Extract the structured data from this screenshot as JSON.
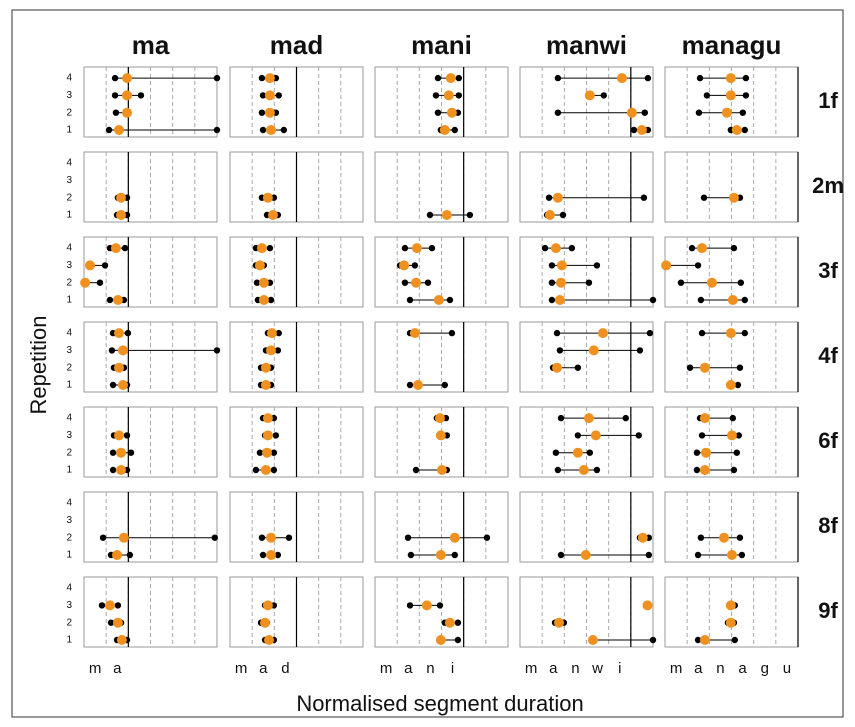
{
  "chart_data": {
    "type": "dot-range",
    "y_label": "Repetition",
    "x_label": "Normalised segment duration",
    "words": [
      {
        "word": "ma",
        "segments": [
          "m",
          "a"
        ]
      },
      {
        "word": "mad",
        "segments": [
          "m",
          "a",
          "d"
        ]
      },
      {
        "word": "mani",
        "segments": [
          "m",
          "a",
          "n",
          "i"
        ]
      },
      {
        "word": "manwi",
        "segments": [
          "m",
          "a",
          "n",
          "w",
          "i"
        ]
      },
      {
        "word": "managu",
        "segments": [
          "m",
          "a",
          "n",
          "a",
          "g",
          "u"
        ]
      }
    ],
    "speakers": [
      "1f",
      "2m",
      "3f",
      "4f",
      "6f",
      "8f",
      "9f"
    ],
    "reps": [
      1,
      2,
      3,
      4
    ],
    "xlim": [
      0,
      6
    ],
    "xticks": [
      1,
      2,
      3,
      4,
      5
    ],
    "colors": {
      "mid": "#f0901e",
      "range": "#000000"
    },
    "panels": [
      [
        {
          "lo": [
            1.13,
            1.44,
            1.4,
            1.4
          ],
          "mid": [
            1.58,
            1.94,
            1.94,
            1.94
          ],
          "hi": [
            6.0,
            1.98,
            2.57,
            6.0
          ]
        },
        {
          "lo": [
            1.49,
            1.44,
            1.49,
            1.44
          ],
          "mid": [
            1.85,
            1.8,
            1.8,
            1.8
          ],
          "hi": [
            2.43,
            2.07,
            2.2,
            2.07
          ]
        },
        {
          "lo": [
            2.97,
            2.84,
            2.75,
            2.84
          ],
          "mid": [
            3.15,
            3.47,
            3.33,
            3.42
          ],
          "hi": [
            3.6,
            3.74,
            3.78,
            3.78
          ]
        },
        {
          "lo": [
            5.14,
            1.71,
            3.15,
            1.71
          ],
          "mid": [
            5.5,
            5.05,
            3.15,
            4.6
          ],
          "hi": [
            5.77,
            5.63,
            3.78,
            5.77
          ]
        },
        {
          "lo": [
            2.97,
            1.53,
            1.89,
            1.58
          ],
          "mid": [
            3.24,
            2.79,
            2.97,
            2.97
          ],
          "hi": [
            3.6,
            3.51,
            3.65,
            3.65
          ]
        }
      ],
      [
        {
          "lo": [
            1.49,
            1.53,
            null,
            null
          ],
          "mid": [
            1.67,
            1.67,
            null,
            null
          ],
          "hi": [
            1.94,
            1.94,
            null,
            null
          ]
        },
        {
          "lo": [
            1.67,
            1.44,
            null,
            null
          ],
          "mid": [
            1.94,
            1.71,
            null,
            null
          ],
          "hi": [
            2.16,
            1.98,
            null,
            null
          ]
        },
        {
          "lo": [
            2.48,
            null,
            null,
            null
          ],
          "mid": [
            3.24,
            null,
            null,
            null
          ],
          "hi": [
            4.28,
            null,
            null,
            null
          ]
        },
        {
          "lo": [
            1.22,
            1.31,
            null,
            null
          ],
          "mid": [
            1.35,
            1.71,
            null,
            null
          ],
          "hi": [
            1.94,
            5.59,
            null,
            null
          ]
        },
        {
          "lo": [
            null,
            1.76,
            null,
            null
          ],
          "mid": [
            null,
            3.11,
            null,
            null
          ],
          "hi": [
            null,
            3.38,
            null,
            null
          ]
        }
      ],
      [
        {
          "lo": [
            1.17,
            0.05,
            0.27,
            1.17
          ],
          "mid": [
            1.53,
            0.05,
            0.27,
            1.44
          ],
          "hi": [
            1.8,
            0.72,
            0.95,
            1.85
          ]
        },
        {
          "lo": [
            1.26,
            1.22,
            1.17,
            1.17
          ],
          "mid": [
            1.53,
            1.53,
            1.35,
            1.44
          ],
          "hi": [
            1.85,
            1.8,
            1.53,
            1.8
          ]
        },
        {
          "lo": [
            1.58,
            1.35,
            1.13,
            1.35
          ],
          "mid": [
            2.88,
            1.85,
            1.31,
            1.89
          ],
          "hi": [
            3.38,
            2.39,
            1.8,
            2.57
          ]
        },
        {
          "lo": [
            1.44,
            1.44,
            1.44,
            1.13
          ],
          "mid": [
            1.8,
            1.85,
            1.89,
            1.62
          ],
          "hi": [
            6.0,
            3.11,
            3.47,
            2.34
          ]
        },
        {
          "lo": [
            1.62,
            0.72,
            0.05,
            1.22
          ],
          "mid": [
            3.06,
            2.12,
            0.05,
            1.67
          ],
          "hi": [
            3.6,
            3.42,
            1.49,
            3.11
          ]
        }
      ],
      [
        {
          "lo": [
            1.31,
            1.35,
            1.26,
            1.31
          ],
          "mid": [
            1.76,
            1.58,
            1.76,
            1.58
          ],
          "hi": [
            1.94,
            1.8,
            6.0,
            1.98
          ]
        },
        {
          "lo": [
            1.4,
            1.4,
            1.62,
            1.71
          ],
          "mid": [
            1.62,
            1.62,
            1.85,
            1.89
          ],
          "hi": [
            1.85,
            1.85,
            2.16,
            2.2
          ]
        },
        {
          "lo": [
            1.58,
            null,
            null,
            1.58
          ],
          "mid": [
            1.94,
            null,
            null,
            1.8
          ],
          "hi": [
            3.15,
            null,
            null,
            3.47
          ]
        },
        {
          "lo": [
            null,
            1.49,
            1.8,
            1.67
          ],
          "mid": [
            null,
            1.67,
            3.33,
            3.74
          ],
          "hi": [
            null,
            2.61,
            5.41,
            5.86
          ]
        },
        {
          "lo": [
            2.93,
            1.13,
            null,
            1.67
          ],
          "mid": [
            2.97,
            1.8,
            null,
            2.97
          ],
          "hi": [
            3.29,
            3.38,
            null,
            3.6
          ]
        }
      ],
      [
        {
          "lo": [
            1.31,
            1.31,
            1.35,
            null
          ],
          "mid": [
            1.67,
            1.67,
            1.58,
            null
          ],
          "hi": [
            1.94,
            2.12,
            1.94,
            null
          ]
        },
        {
          "lo": [
            1.17,
            1.35,
            1.58,
            1.49
          ],
          "mid": [
            1.62,
            1.67,
            1.71,
            1.71
          ],
          "hi": [
            1.98,
            1.98,
            2.07,
            1.98
          ]
        },
        {
          "lo": [
            1.85,
            null,
            2.93,
            2.79
          ],
          "mid": [
            3.02,
            null,
            2.97,
            2.93
          ],
          "hi": [
            3.24,
            null,
            3.24,
            3.2
          ]
        },
        {
          "lo": [
            1.71,
            1.62,
            2.61,
            1.85
          ],
          "mid": [
            2.88,
            2.61,
            3.42,
            3.11
          ],
          "hi": [
            3.47,
            3.15,
            5.36,
            4.77
          ]
        },
        {
          "lo": [
            1.44,
            1.44,
            1.67,
            1.58
          ],
          "mid": [
            1.8,
            1.85,
            3.02,
            1.8
          ],
          "hi": [
            3.11,
            3.24,
            3.33,
            3.06
          ]
        }
      ],
      [
        {
          "lo": [
            1.22,
            0.86,
            null,
            null
          ],
          "mid": [
            1.49,
            1.8,
            null,
            null
          ],
          "hi": [
            2.07,
            5.9,
            null,
            null
          ]
        },
        {
          "lo": [
            1.49,
            1.44,
            null,
            null
          ],
          "mid": [
            1.85,
            1.85,
            null,
            null
          ],
          "hi": [
            2.16,
            2.66,
            null,
            null
          ]
        },
        {
          "lo": [
            1.62,
            1.49,
            null,
            null
          ],
          "mid": [
            2.97,
            3.6,
            null,
            null
          ],
          "hi": [
            3.6,
            5.05,
            null,
            null
          ]
        },
        {
          "lo": [
            1.85,
            5.41,
            null,
            null
          ],
          "mid": [
            2.97,
            5.54,
            null,
            null
          ],
          "hi": [
            5.81,
            5.81,
            null,
            null
          ]
        },
        {
          "lo": [
            1.49,
            1.62,
            null,
            null
          ],
          "mid": [
            3.02,
            2.66,
            null,
            null
          ],
          "hi": [
            3.47,
            3.38,
            null,
            null
          ]
        }
      ],
      [
        {
          "lo": [
            1.49,
            1.22,
            0.81,
            null
          ],
          "mid": [
            1.71,
            1.53,
            1.17,
            null
          ],
          "hi": [
            1.94,
            1.67,
            1.53,
            null
          ]
        },
        {
          "lo": [
            1.58,
            1.4,
            1.58,
            null
          ],
          "mid": [
            1.76,
            1.58,
            1.71,
            null
          ],
          "hi": [
            1.98,
            1.67,
            1.98,
            null
          ]
        },
        {
          "lo": [
            2.97,
            3.15,
            1.58,
            null
          ],
          "mid": [
            2.97,
            3.38,
            2.34,
            null
          ],
          "hi": [
            3.74,
            3.74,
            2.93,
            null
          ]
        },
        {
          "lo": [
            3.29,
            1.58,
            5.75,
            null
          ],
          "mid": [
            3.29,
            1.76,
            5.75,
            null
          ],
          "hi": [
            6.0,
            1.98,
            5.75,
            null
          ]
        },
        {
          "lo": [
            1.49,
            2.84,
            2.93,
            null
          ],
          "mid": [
            1.8,
            2.97,
            2.97,
            null
          ],
          "hi": [
            3.15,
            3.11,
            3.15,
            null
          ]
        }
      ]
    ]
  }
}
